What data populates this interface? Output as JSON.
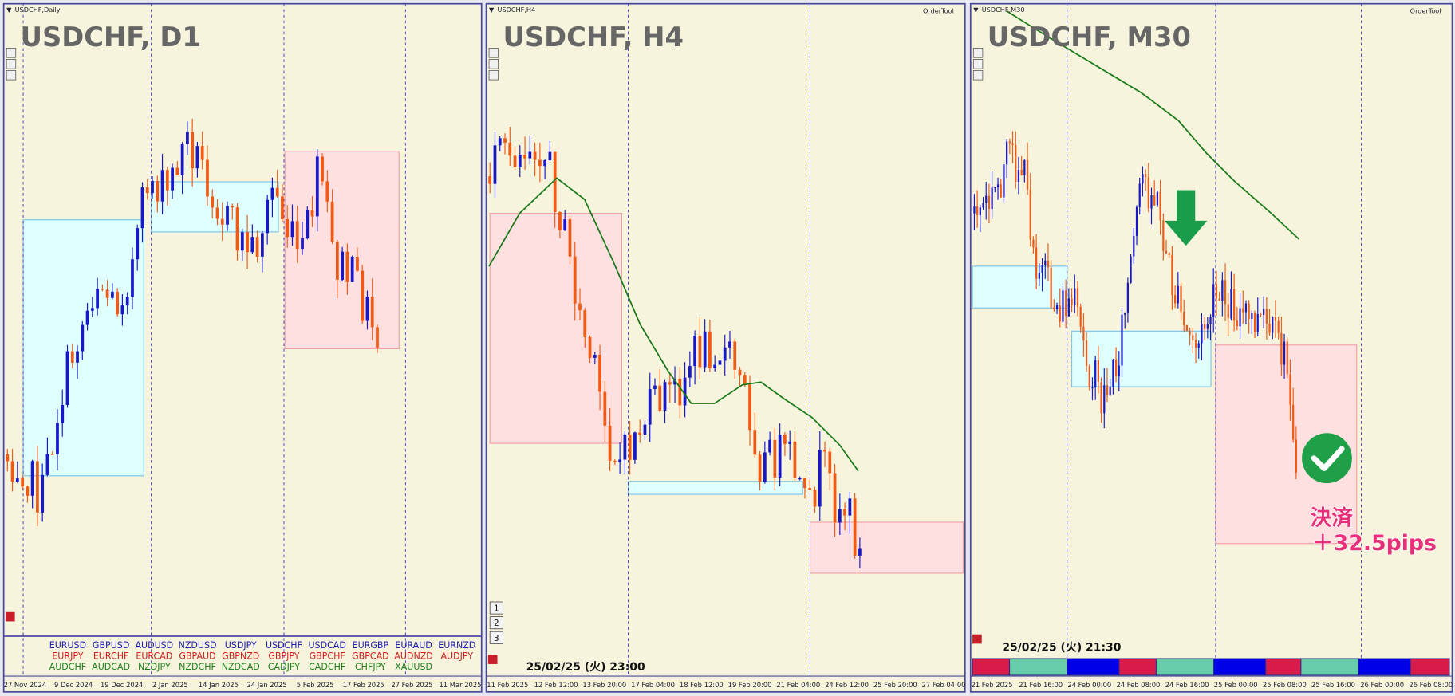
{
  "panels": [
    {
      "header": "USDCHF,Daily",
      "title": "USDCHF, D1",
      "x_labels": [
        "27 Nov 2024",
        "9 Dec 2024",
        "19 Dec 2024",
        "2 Jan 2025",
        "14 Jan 2025",
        "24 Jan 2025",
        "5 Feb 2025",
        "17 Feb 2025",
        "27 Feb 2025",
        "11 Mar 2025"
      ]
    },
    {
      "header": "USDCHF,H4",
      "order_tool": "OrderTool",
      "title": "USDCHF, H4",
      "x_labels": [
        "11 Feb 2025",
        "12 Feb 12:00",
        "13 Feb 20:00",
        "17 Feb 04:00",
        "18 Feb 12:00",
        "19 Feb 20:00",
        "21 Feb 04:00",
        "24 Feb 12:00",
        "25 Feb 20:00",
        "27 Feb 04:00"
      ],
      "buttons": [
        "1",
        "2",
        "3"
      ],
      "timestamp": "25/02/25 (火) 23:00"
    },
    {
      "header": "USDCHF,M30",
      "order_tool": "OrderTool",
      "title": "USDCHF, M30",
      "x_labels": [
        "21 Feb 2025",
        "21 Feb 16:00",
        "24 Feb 00:00",
        "24 Feb 08:00",
        "24 Feb 16:00",
        "25 Feb 00:00",
        "25 Feb 08:00",
        "25 Feb 16:00",
        "26 Feb 00:00",
        "26 Feb 08:00"
      ],
      "timestamp": "25/02/25 (火) 21:30",
      "annotation": {
        "line1": "決済",
        "line2": "＋32.5pips"
      }
    }
  ],
  "symbols": [
    [
      "EURUSD",
      "GBPUSD",
      "AUDUSD",
      "NZDUSD",
      "USDJPY",
      "USDCHF",
      "USDCAD",
      "EURGBP",
      "EURAUD",
      "EURNZD"
    ],
    [
      "EURJPY",
      "EURCHF",
      "EURCAD",
      "GBPAUD",
      "GBPNZD",
      "GBPJPY",
      "GBPCHF",
      "GBPCAD",
      "AUDNZD",
      "AUDJPY"
    ],
    [
      "AUDCHF",
      "AUDCAD",
      "NZDJPY",
      "NZDCHF",
      "NZDCAD",
      "CADJPY",
      "CADCHF",
      "CHFJPY",
      "XAUUSD"
    ]
  ]
}
